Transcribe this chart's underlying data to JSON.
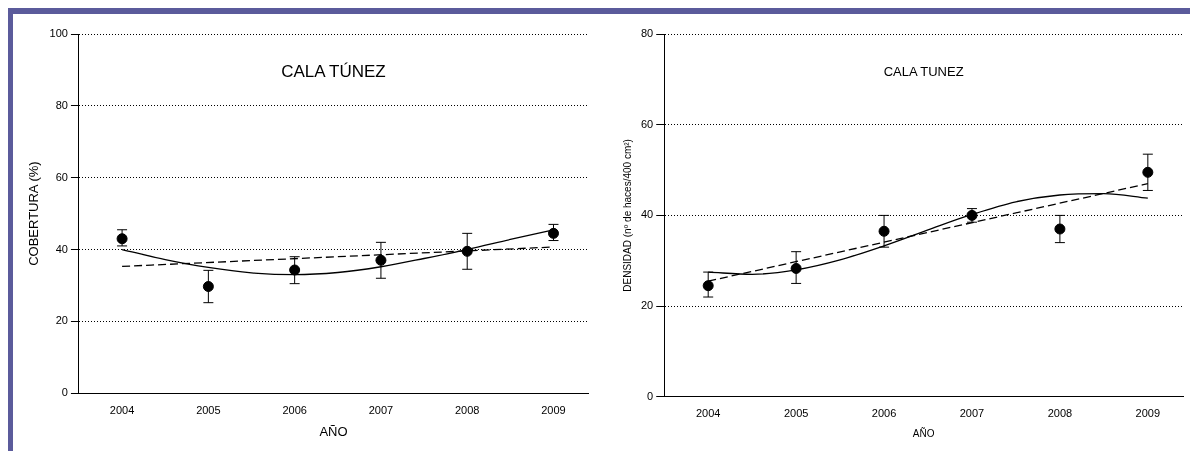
{
  "chart_data": [
    {
      "type": "scatter",
      "title": "CALA TÚNEZ",
      "xlabel": "AÑO",
      "ylabel": "COBERTURA (%)",
      "xlim": [
        2003.5,
        2009.4
      ],
      "xticks": [
        2004,
        2005,
        2006,
        2007,
        2008,
        2009
      ],
      "ylim": [
        0,
        100
      ],
      "yticks": [
        0,
        20,
        40,
        60,
        80,
        100
      ],
      "grid": "y",
      "legend": false,
      "series": [
        {
          "type": "scatter",
          "color": "#000000",
          "marker": "circle",
          "x": [
            2004,
            2005,
            2006,
            2007,
            2008,
            2009
          ],
          "values": [
            43,
            29.7,
            34.3,
            37,
            39.5,
            44.5
          ],
          "errors": [
            [
              41,
              45.5
            ],
            [
              25.2,
              34.2
            ],
            [
              30.5,
              38
            ],
            [
              32,
              42
            ],
            [
              34.5,
              44.5
            ],
            [
              42.5,
              47
            ]
          ]
        },
        {
          "type": "line",
          "color": "#000000",
          "line_style": "solid",
          "marker": "none",
          "x": [
            2004,
            2004.5,
            2005,
            2005.5,
            2006,
            2006.5,
            2007,
            2007.5,
            2008,
            2008.5,
            2009
          ],
          "values": [
            40,
            37.2,
            35,
            33.5,
            33,
            33.6,
            35.2,
            37.5,
            40,
            42.8,
            45.5
          ]
        },
        {
          "type": "line",
          "color": "#000000",
          "line_style": "dashed",
          "marker": "none",
          "x": [
            2004,
            2009
          ],
          "values": [
            35.3,
            40.7
          ]
        }
      ]
    },
    {
      "type": "scatter",
      "title": "CALA TUNEZ",
      "xlabel": "AÑO",
      "ylabel": "DENSIDAD (nº de haces/400 cm²)",
      "xlim": [
        2003.5,
        2009.4
      ],
      "xticks": [
        2004,
        2005,
        2006,
        2007,
        2008,
        2009
      ],
      "ylim": [
        0,
        80
      ],
      "yticks": [
        0,
        20,
        40,
        60,
        80
      ],
      "grid": "y",
      "legend": false,
      "series": [
        {
          "type": "scatter",
          "color": "#000000",
          "marker": "circle",
          "x": [
            2004,
            2005,
            2006,
            2007,
            2008,
            2009
          ],
          "values": [
            24.5,
            28.3,
            36.5,
            40,
            37,
            49.5
          ],
          "errors": [
            [
              22,
              27.5
            ],
            [
              25,
              32
            ],
            [
              33,
              40
            ],
            [
              38.5,
              41.5
            ],
            [
              34,
              40
            ],
            [
              45.5,
              53.5
            ]
          ]
        },
        {
          "type": "line",
          "color": "#000000",
          "line_style": "solid",
          "marker": "none",
          "x": [
            2004,
            2004.5,
            2005,
            2005.5,
            2006,
            2006.5,
            2007,
            2007.5,
            2008,
            2008.5,
            2009
          ],
          "values": [
            27.5,
            27,
            28,
            30.2,
            33.3,
            36.8,
            40.2,
            43,
            44.5,
            44.8,
            43.8
          ]
        },
        {
          "type": "line",
          "color": "#000000",
          "line_style": "dashed",
          "marker": "none",
          "x": [
            2004,
            2009
          ],
          "values": [
            25.5,
            47
          ]
        }
      ]
    }
  ]
}
